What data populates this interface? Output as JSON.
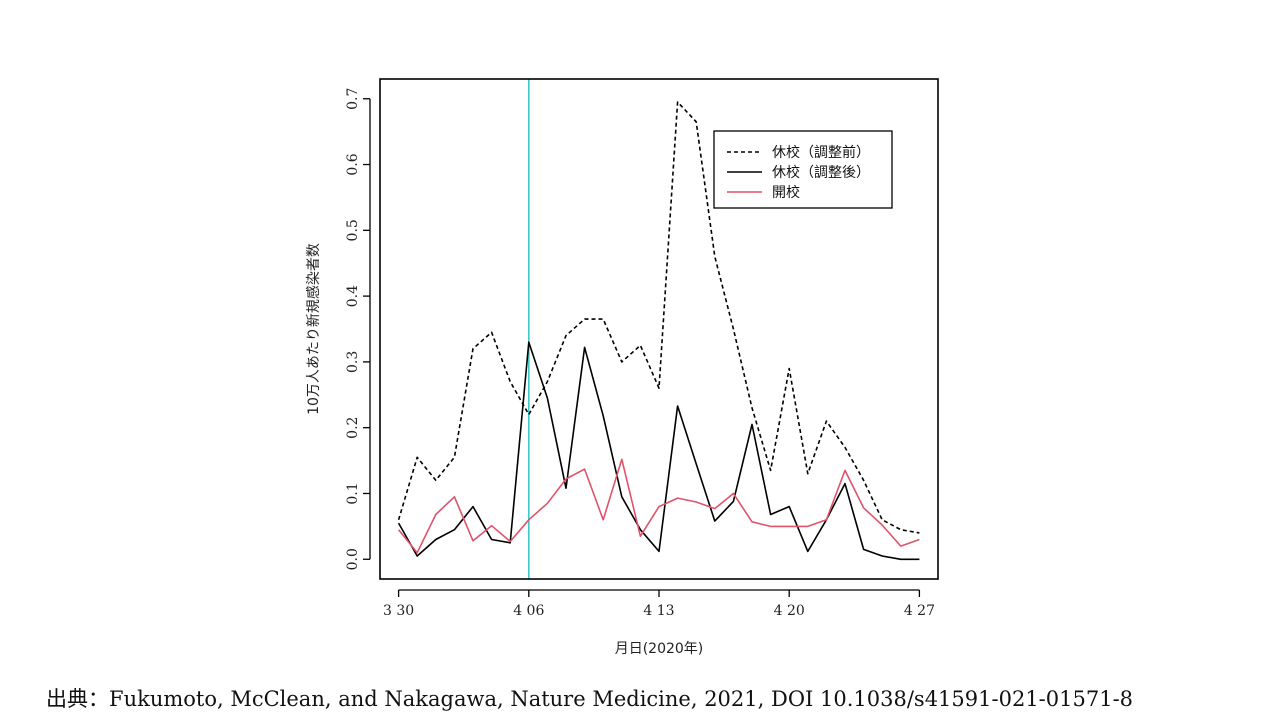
{
  "chart_data": {
    "type": "line",
    "xlabel": "月日(2020年)",
    "ylabel": "10万人あたり新規感染者数",
    "ylim": [
      -0.03,
      0.73
    ],
    "xlim": [
      -1,
      29
    ],
    "x_ticks": [
      {
        "x": 0,
        "label": "3 30"
      },
      {
        "x": 7,
        "label": "4 06"
      },
      {
        "x": 14,
        "label": "4 13"
      },
      {
        "x": 21,
        "label": "4 20"
      },
      {
        "x": 28,
        "label": "4 27"
      }
    ],
    "y_ticks": [
      {
        "y": 0.0,
        "label": "0.0"
      },
      {
        "y": 0.1,
        "label": "0.1"
      },
      {
        "y": 0.2,
        "label": "0.2"
      },
      {
        "y": 0.3,
        "label": "0.3"
      },
      {
        "y": 0.4,
        "label": "0.4"
      },
      {
        "y": 0.5,
        "label": "0.5"
      },
      {
        "y": 0.6,
        "label": "0.6"
      },
      {
        "y": 0.7,
        "label": "0.7"
      }
    ],
    "vline": {
      "x": 7,
      "color": "#40C8C8"
    },
    "legend_position": "top-right",
    "grid": false,
    "series": [
      {
        "name": "休校（調整前）",
        "style": "dashed",
        "color": "#000000",
        "values": [
          0.06,
          0.155,
          0.12,
          0.155,
          0.32,
          0.345,
          0.27,
          0.22,
          0.27,
          0.34,
          0.365,
          0.365,
          0.3,
          0.325,
          0.26,
          0.695,
          0.665,
          0.46,
          0.35,
          0.23,
          0.135,
          0.29,
          0.13,
          0.21,
          0.17,
          0.12,
          0.06,
          0.045,
          0.04
        ]
      },
      {
        "name": "休校（調整後）",
        "style": "solid",
        "color": "#000000",
        "values": [
          0.055,
          0.005,
          0.03,
          0.045,
          0.08,
          0.03,
          0.025,
          0.33,
          0.245,
          0.108,
          0.322,
          0.218,
          0.095,
          0.045,
          0.012,
          0.233,
          0.145,
          0.058,
          0.088,
          0.205,
          0.068,
          0.08,
          0.012,
          0.06,
          0.115,
          0.015,
          0.005,
          0.0,
          0.0
        ]
      },
      {
        "name": "開校",
        "style": "solid",
        "color": "#DF536B",
        "values": [
          0.045,
          0.01,
          0.068,
          0.095,
          0.028,
          0.051,
          0.027,
          0.06,
          0.085,
          0.122,
          0.137,
          0.06,
          0.152,
          0.035,
          0.08,
          0.093,
          0.087,
          0.077,
          0.1,
          0.057,
          0.05,
          0.05,
          0.05,
          0.06,
          0.135,
          0.078,
          0.052,
          0.02,
          0.03
        ]
      }
    ]
  },
  "source": "出典：Fukumoto, McClean, and Nakagawa, Nature Medicine, 2021, DOI 10.1038/s41591-021-01571-8"
}
